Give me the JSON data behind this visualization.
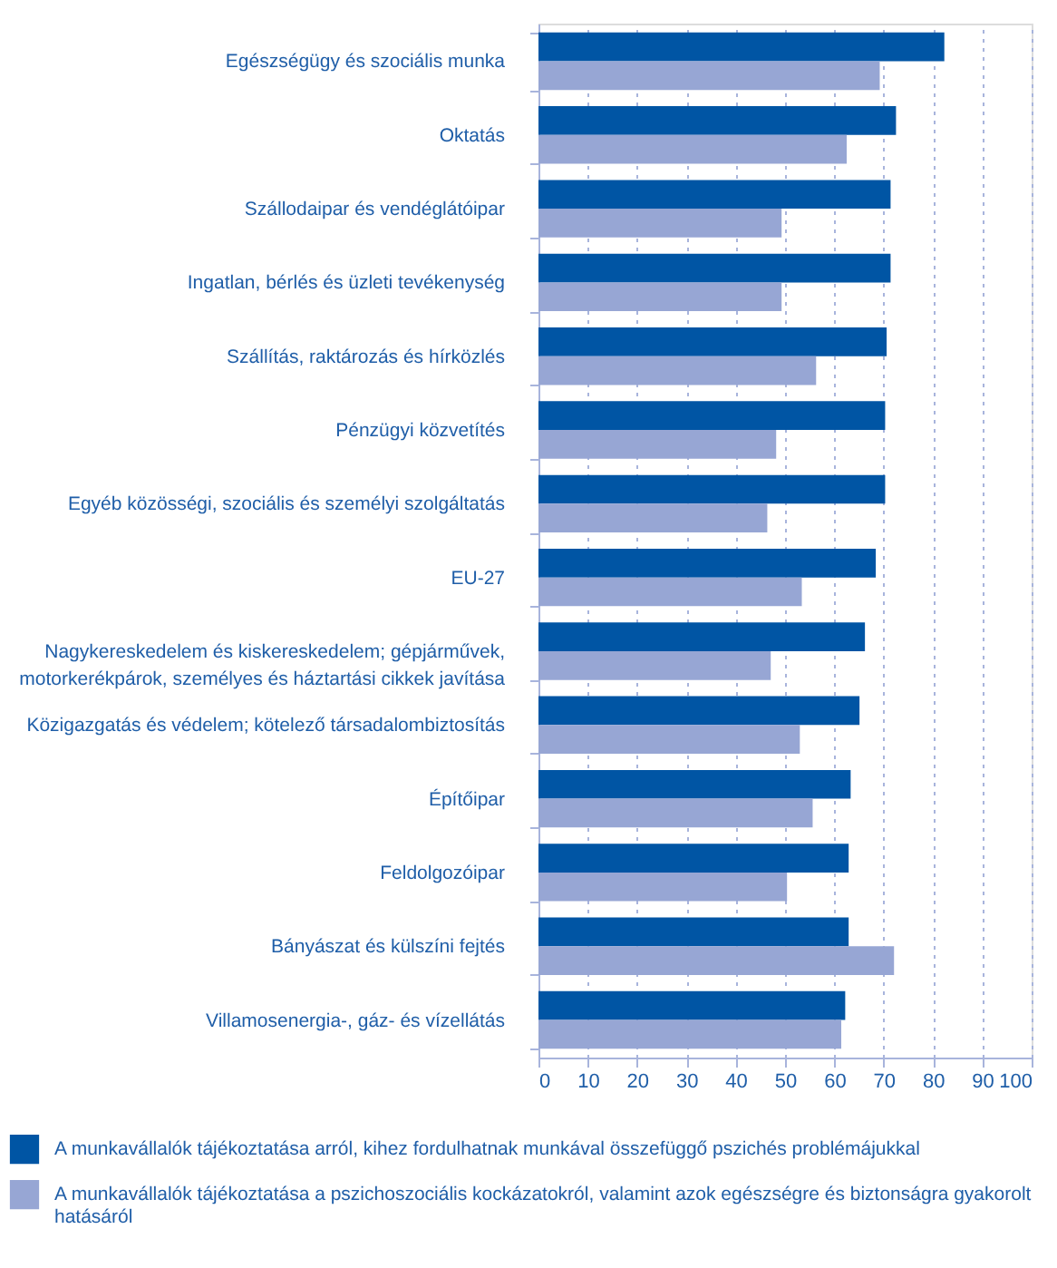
{
  "chart_data": {
    "type": "bar",
    "orientation": "horizontal",
    "categories": [
      "Egészségügy és szociális munka",
      "Oktatás",
      "Szállodaipar és vendéglátóipar",
      "Ingatlan, bérlés és üzleti tevékenység",
      "Szállítás, raktározás és hírközlés",
      "Pénzügyi közvetítés",
      "Egyéb közösségi, szociális és személyi szolgáltatás",
      "EU-27",
      "Nagykereskedelem és kiskereskedelem; gépjárművek, motorkerékpárok, személyes és háztartási cikkek javítása",
      "Közigazgatás és védelem; kötelező társadalombiztosítás",
      "Építőipar",
      "Feldolgozóipar",
      "Bányászat és külszíni fejtés",
      "Villamosenergia-, gáz- és vízellátás"
    ],
    "series": [
      {
        "name": "A munkavállalók tájékoztatása arról, kihez fordulhatnak munkával összefüggő pszichés problémájukkal",
        "color": "#0055a4",
        "values": [
          82.3,
          72.5,
          71.4,
          71.4,
          70.6,
          70.3,
          70.3,
          68.4,
          66.2,
          65.1,
          63.3,
          62.9,
          62.9,
          62.2
        ]
      },
      {
        "name": "A munkavállalók tájékoztatása a pszichoszociális kockázatokról, valamint azok egészségre és biztonságra gyakorolt hatásáról",
        "color": "#97a6d4",
        "values": [
          69.2,
          62.5,
          49.3,
          49.3,
          56.3,
          48.2,
          46.4,
          53.4,
          47.1,
          53.0,
          55.6,
          50.4,
          72.1,
          61.4
        ]
      }
    ],
    "xlim": [
      0,
      100
    ],
    "xticks": [
      0,
      10,
      20,
      30,
      40,
      50,
      60,
      70,
      80,
      90,
      100
    ],
    "grid": "x",
    "legend": "bottom"
  }
}
